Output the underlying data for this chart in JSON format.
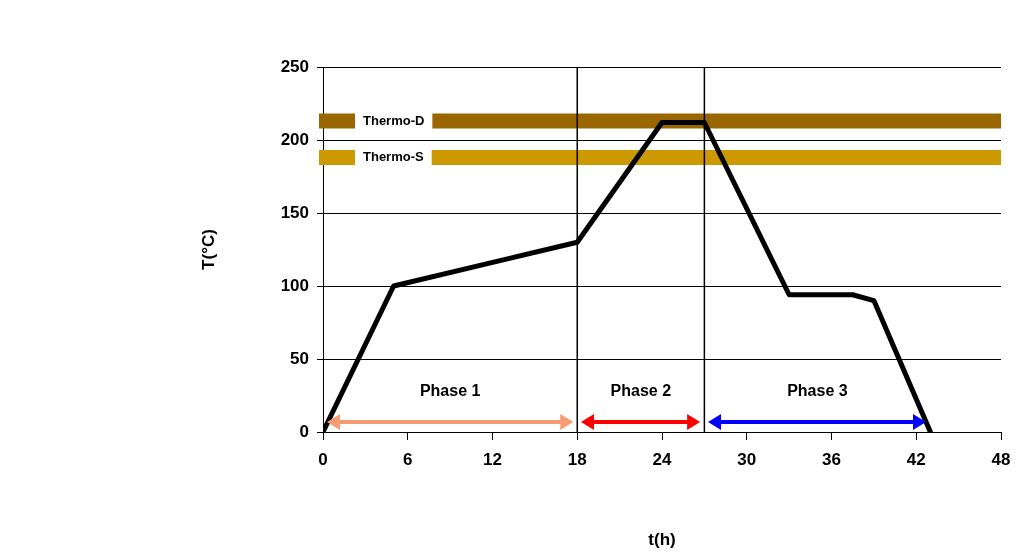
{
  "chart_data": {
    "type": "line",
    "xlabel": "t(h)",
    "ylabel": "T(°C)",
    "x": [
      0,
      5,
      18,
      24,
      27,
      33,
      37.5,
      39,
      43
    ],
    "series": [
      {
        "color": "#000000",
        "values": [
          0,
          100,
          130,
          212,
          212,
          94,
          94,
          90,
          0
        ]
      }
    ],
    "xlim": [
      0,
      48
    ],
    "xticks": [
      0,
      6,
      12,
      18,
      24,
      30,
      36,
      42,
      48
    ],
    "ylim": [
      0,
      250
    ],
    "yticks": [
      0,
      50,
      100,
      150,
      200,
      250
    ],
    "grid": "y",
    "legend": false,
    "marker": "none",
    "line_style": "solid",
    "ref_lines": [
      {
        "axis": "y",
        "value": 213,
        "label": "Thermo-D",
        "color": "#996600"
      },
      {
        "axis": "y",
        "value": 188,
        "label": "Thermo-S",
        "color": "#cc9900"
      },
      {
        "axis": "x",
        "value": 18,
        "color": "#000000"
      },
      {
        "axis": "x",
        "value": 27,
        "color": "#000000"
      }
    ],
    "annotations": [
      "Phase 1",
      "Phase 2",
      "Phase 3"
    ]
  }
}
